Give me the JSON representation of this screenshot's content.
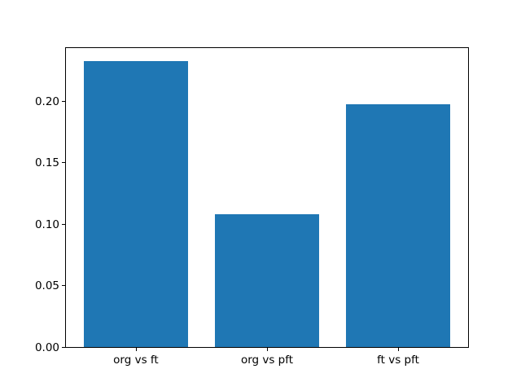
{
  "figure": {
    "background_color": "#ffffff",
    "axis_color": "#000000",
    "text_color": "#000000"
  },
  "chart_data": {
    "type": "bar",
    "categories": [
      "org vs ft",
      "org vs pft",
      "ft vs pft"
    ],
    "values": [
      0.232,
      0.108,
      0.197
    ],
    "title": "",
    "xlabel": "",
    "ylabel": "",
    "ylim": [
      0,
      0.244
    ],
    "yticks": [
      0.0,
      0.05,
      0.1,
      0.15,
      0.2
    ],
    "ytick_labels": [
      "0.00",
      "0.05",
      "0.10",
      "0.15",
      "0.20"
    ],
    "bar_color": "#1f77b4",
    "bar_width_fraction": 0.8,
    "grid": false,
    "legend": null
  }
}
